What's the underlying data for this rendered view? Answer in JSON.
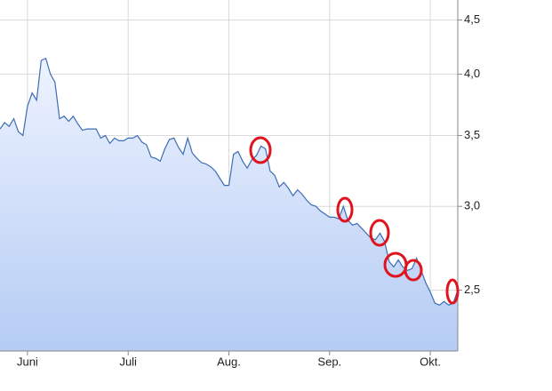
{
  "chart_data": {
    "type": "line",
    "area": true,
    "log_scale": true,
    "grid": true,
    "color": "#3d6db5",
    "categories": [
      null,
      null,
      null,
      null,
      null,
      null,
      "Juni",
      null,
      null,
      null,
      null,
      null,
      null,
      null,
      null,
      null,
      null,
      null,
      null,
      null,
      null,
      null,
      null,
      null,
      null,
      null,
      null,
      null,
      "Juli",
      null,
      null,
      null,
      null,
      null,
      null,
      null,
      null,
      null,
      null,
      null,
      null,
      null,
      null,
      null,
      null,
      null,
      null,
      null,
      null,
      null,
      "Aug.",
      null,
      null,
      null,
      null,
      null,
      null,
      null,
      null,
      null,
      null,
      null,
      null,
      null,
      null,
      null,
      null,
      null,
      null,
      null,
      null,
      null,
      "Sep.",
      null,
      null,
      null,
      null,
      null,
      null,
      null,
      null,
      null,
      null,
      null,
      null,
      null,
      null,
      null,
      null,
      null,
      null,
      null,
      null,
      null,
      "Okt.",
      null,
      null,
      null,
      null,
      null,
      null
    ],
    "values": [
      3.55,
      3.6,
      3.57,
      3.63,
      3.53,
      3.5,
      3.73,
      3.84,
      3.78,
      4.12,
      4.14,
      4.0,
      3.93,
      3.63,
      3.65,
      3.61,
      3.65,
      3.59,
      3.54,
      3.55,
      3.55,
      3.55,
      3.48,
      3.5,
      3.44,
      3.48,
      3.46,
      3.46,
      3.48,
      3.48,
      3.5,
      3.45,
      3.43,
      3.34,
      3.33,
      3.31,
      3.4,
      3.47,
      3.48,
      3.41,
      3.36,
      3.48,
      3.37,
      3.33,
      3.3,
      3.29,
      3.27,
      3.24,
      3.19,
      3.14,
      3.14,
      3.36,
      3.38,
      3.31,
      3.26,
      3.32,
      3.35,
      3.42,
      3.4,
      3.24,
      3.21,
      3.13,
      3.16,
      3.12,
      3.07,
      3.11,
      3.08,
      3.04,
      3.01,
      3.0,
      2.97,
      2.95,
      2.93,
      2.93,
      2.92,
      3.0,
      2.91,
      2.88,
      2.89,
      2.86,
      2.83,
      2.8,
      2.79,
      2.83,
      2.78,
      2.66,
      2.63,
      2.67,
      2.63,
      2.61,
      2.62,
      2.68,
      2.61,
      2.54,
      2.49,
      2.43,
      2.42,
      2.44,
      2.42,
      2.43,
      2.5
    ],
    "ylim": [
      2.19,
      4.7
    ],
    "yticks": [
      {
        "value": 2.5,
        "label": "2,5"
      },
      {
        "value": 3,
        "label": "3,0"
      },
      {
        "value": 3.5,
        "label": "3,5"
      },
      {
        "value": 4,
        "label": "4,0"
      },
      {
        "value": 4.5,
        "label": "4,5"
      }
    ]
  }
}
